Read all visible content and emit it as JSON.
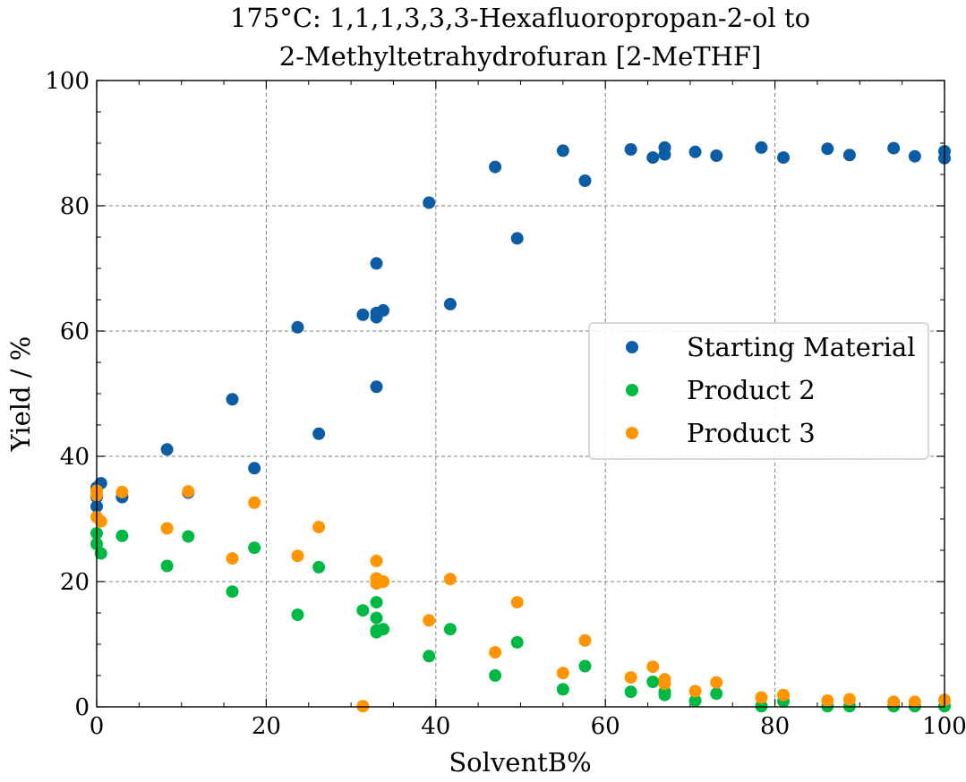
{
  "chart_data": {
    "type": "scatter",
    "title": [
      "175°C: 1,1,1,3,3,3-Hexafluoropropan-2-ol to",
      "2-Methyltetrahydrofuran [2-MeTHF]"
    ],
    "xlabel": "SolventB%",
    "ylabel": "Yield / %",
    "xlim": [
      0,
      100
    ],
    "ylim": [
      0,
      100
    ],
    "xticks": [
      0,
      20,
      40,
      60,
      80,
      100
    ],
    "yticks": [
      0,
      20,
      40,
      60,
      80,
      100
    ],
    "grid": true,
    "legend_position": "center-right",
    "series": [
      {
        "name": "Starting Material",
        "color": "#0c5da5",
        "points": [
          [
            0,
            32
          ],
          [
            0,
            33.5
          ],
          [
            0,
            35
          ],
          [
            0.5,
            35.7
          ],
          [
            3,
            33.5
          ],
          [
            8.3,
            41.1
          ],
          [
            10.8,
            34.2
          ],
          [
            16,
            49.1
          ],
          [
            18.6,
            38.1
          ],
          [
            23.7,
            60.6
          ],
          [
            26.2,
            43.6
          ],
          [
            31.4,
            62.6
          ],
          [
            33,
            70.8
          ],
          [
            33,
            62.9
          ],
          [
            33,
            62.2
          ],
          [
            33,
            51.1
          ],
          [
            33.8,
            63.3
          ],
          [
            39.2,
            80.5
          ],
          [
            41.7,
            64.3
          ],
          [
            47,
            86.2
          ],
          [
            49.6,
            74.8
          ],
          [
            55,
            88.8
          ],
          [
            57.6,
            84
          ],
          [
            63,
            89
          ],
          [
            65.6,
            87.7
          ],
          [
            67,
            89.3
          ],
          [
            67,
            88.2
          ],
          [
            70.6,
            88.6
          ],
          [
            73.1,
            88
          ],
          [
            78.4,
            89.3
          ],
          [
            81,
            87.7
          ],
          [
            86.2,
            89.1
          ],
          [
            88.8,
            88.1
          ],
          [
            94,
            89.2
          ],
          [
            96.5,
            87.9
          ],
          [
            100,
            88.7
          ],
          [
            100,
            87.6
          ]
        ]
      },
      {
        "name": "Product 2",
        "color": "#00b945",
        "points": [
          [
            0,
            26
          ],
          [
            0,
            27.7
          ],
          [
            0.5,
            24.5
          ],
          [
            3,
            27.3
          ],
          [
            8.3,
            22.5
          ],
          [
            10.8,
            27.2
          ],
          [
            16,
            18.4
          ],
          [
            18.6,
            25.4
          ],
          [
            23.7,
            14.7
          ],
          [
            26.2,
            22.3
          ],
          [
            31.4,
            15.4
          ],
          [
            33,
            16.7
          ],
          [
            33,
            14.2
          ],
          [
            33,
            12.2
          ],
          [
            33,
            11.9
          ],
          [
            33.8,
            12.4
          ],
          [
            39.2,
            8.1
          ],
          [
            41.7,
            12.4
          ],
          [
            47,
            5
          ],
          [
            49.6,
            10.3
          ],
          [
            55,
            2.8
          ],
          [
            57.6,
            6.5
          ],
          [
            63,
            2.4
          ],
          [
            65.6,
            4
          ],
          [
            67,
            2.4
          ],
          [
            67,
            1.9
          ],
          [
            70.6,
            1
          ],
          [
            73.1,
            2.1
          ],
          [
            78.4,
            0.1
          ],
          [
            81,
            0.9
          ],
          [
            86.2,
            0.1
          ],
          [
            88.8,
            0.1
          ],
          [
            94,
            0.1
          ],
          [
            96.5,
            0.1
          ],
          [
            100,
            0.1
          ]
        ]
      },
      {
        "name": "Product 3",
        "color": "#ff9500",
        "points": [
          [
            0,
            34.5
          ],
          [
            0,
            33.8
          ],
          [
            0,
            30.3
          ],
          [
            0.5,
            29.6
          ],
          [
            3,
            34.3
          ],
          [
            8.3,
            28.5
          ],
          [
            10.8,
            34.4
          ],
          [
            16,
            23.7
          ],
          [
            18.6,
            32.6
          ],
          [
            23.7,
            24.1
          ],
          [
            26.2,
            28.7
          ],
          [
            31.4,
            0.1
          ],
          [
            33,
            23.3
          ],
          [
            33,
            20.5
          ],
          [
            33,
            19.7
          ],
          [
            33.8,
            20
          ],
          [
            39.2,
            13.8
          ],
          [
            41.7,
            20.4
          ],
          [
            47,
            8.7
          ],
          [
            49.6,
            16.7
          ],
          [
            55,
            5.4
          ],
          [
            57.6,
            10.6
          ],
          [
            63,
            4.7
          ],
          [
            65.6,
            6.4
          ],
          [
            67,
            4.4
          ],
          [
            67,
            3.7
          ],
          [
            70.6,
            2.5
          ],
          [
            73.1,
            3.9
          ],
          [
            78.4,
            1.5
          ],
          [
            81,
            1.9
          ],
          [
            86.2,
            1
          ],
          [
            88.8,
            1.2
          ],
          [
            94,
            0.8
          ],
          [
            96.5,
            0.8
          ],
          [
            100,
            1.1
          ]
        ]
      }
    ]
  }
}
